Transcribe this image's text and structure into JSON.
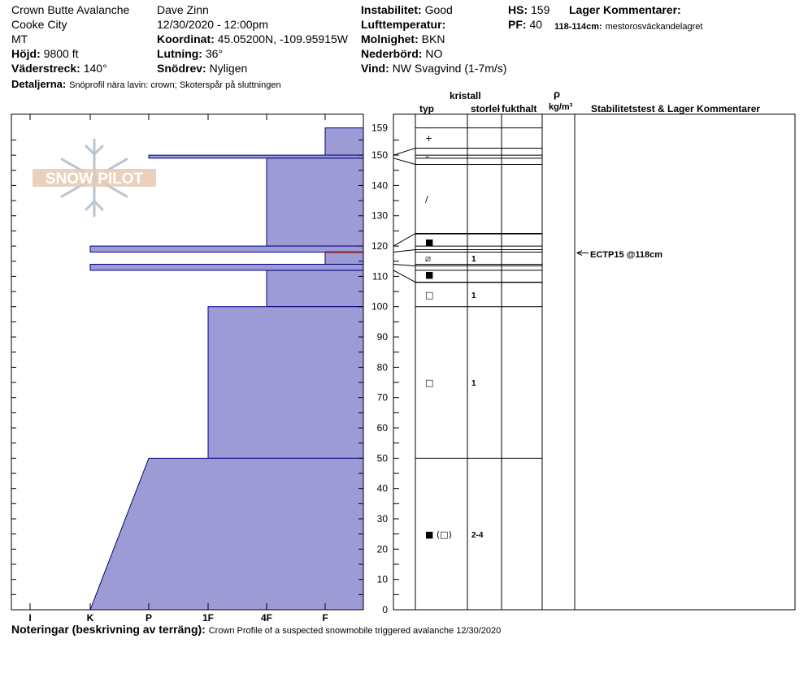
{
  "header": {
    "location": "Crown Butte Avalanche",
    "city": "Cooke City",
    "state": "MT",
    "elevation_label": "Höjd:",
    "elevation_value": "9800 ft",
    "aspect_label": "Väderstreck:",
    "aspect_value": "140°",
    "details_label": "Detaljerna:",
    "details_value": "Snöprofil nära lavin: crown; Skoterspår på sluttningen",
    "observer": "Dave Zinn",
    "datetime": "12/30/2020 - 12:00pm",
    "coord_label": "Koordinat:",
    "coord_value": "45.05200N, -109.95915W",
    "slope_label": "Lutning:",
    "slope_value": "36°",
    "drift_label": "Snödrev:",
    "drift_value": "Nyligen",
    "instability_label": "Instabilitet:",
    "instability_value": "Good",
    "airtemp_label": "Lufttemperatur:",
    "airtemp_value": "",
    "sky_label": "Molnighet:",
    "sky_value": "BKN",
    "precip_label": "Nederbörd:",
    "precip_value": "NO",
    "wind_label": "Vind:",
    "wind_value": "NW Svagvind (1-7m/s)",
    "hs_label": "HS:",
    "hs_value": "159",
    "pf_label": "PF:",
    "pf_value": "40",
    "layer_comments_title": "Lager Kommentarer:",
    "layer_comment_range": "118-114cm:",
    "layer_comment_text": "mestorosväckandelagret"
  },
  "logo": {
    "text": "SNOW PILOT"
  },
  "columns": {
    "crystal_title": "kristall",
    "type": "typ",
    "size": "storlek",
    "moisture": "fukthalt",
    "rho": "ρ",
    "density_unit": "kg/m³",
    "stability": "Stabilitetstest & Lager Kommentarer"
  },
  "footer": {
    "notes_label": "Noteringar (beskrivning av terräng):",
    "notes_value": "Crown Profile of a suspected snowmobile triggered avalanche 12/30/2020"
  },
  "stability_test": {
    "label": "ECTP15 @118cm",
    "depth": 118
  },
  "colors": {
    "fill": "#9c9bd6",
    "edge": "#000080",
    "marker": "#8b1a1a"
  },
  "chart_data": {
    "type": "area",
    "title": "",
    "xlabel": "",
    "ylabel": "",
    "ylim": [
      0,
      159
    ],
    "y_ticks": [
      0,
      10,
      20,
      30,
      40,
      50,
      60,
      70,
      80,
      90,
      100,
      110,
      120,
      130,
      140,
      150,
      159
    ],
    "hardness_ticks": [
      "I",
      "K",
      "P",
      "1F",
      "4F",
      "F"
    ],
    "hardness_profile": [
      {
        "top": 159,
        "bottom": 150,
        "hardness": "F"
      },
      {
        "top": 150,
        "bottom": 149,
        "hardness": "P+"
      },
      {
        "top": 149,
        "bottom": 120,
        "hardness": "4F"
      },
      {
        "top": 120,
        "bottom": 118,
        "hardness": "K"
      },
      {
        "top": 118,
        "bottom": 114,
        "hardness": "F"
      },
      {
        "top": 114,
        "bottom": 112,
        "hardness": "K"
      },
      {
        "top": 112,
        "bottom": 100,
        "hardness": "4F"
      },
      {
        "top": 100,
        "bottom": 50,
        "hardness": "1F"
      },
      {
        "top": 50,
        "bottom": 0,
        "hardness": "P to K (gradient)"
      }
    ],
    "layer_boundaries": [
      159,
      150,
      149,
      124,
      120,
      118,
      114,
      112,
      108,
      100,
      50
    ],
    "grain_layers": [
      {
        "depth": 156,
        "type": "+",
        "size": ""
      },
      {
        "depth": 150,
        "type": "–",
        "size": ""
      },
      {
        "depth": 136,
        "type": "/",
        "size": ""
      },
      {
        "depth": 122,
        "type": "■",
        "size": ""
      },
      {
        "depth": 116,
        "type": "⧄",
        "size": "1"
      },
      {
        "depth": 110,
        "type": "■",
        "size": ""
      },
      {
        "depth": 104,
        "type": "□",
        "size": "1"
      },
      {
        "depth": 75,
        "type": "□",
        "size": "1"
      },
      {
        "depth": 25,
        "type": "■ (□)",
        "size": "2-4"
      }
    ]
  }
}
